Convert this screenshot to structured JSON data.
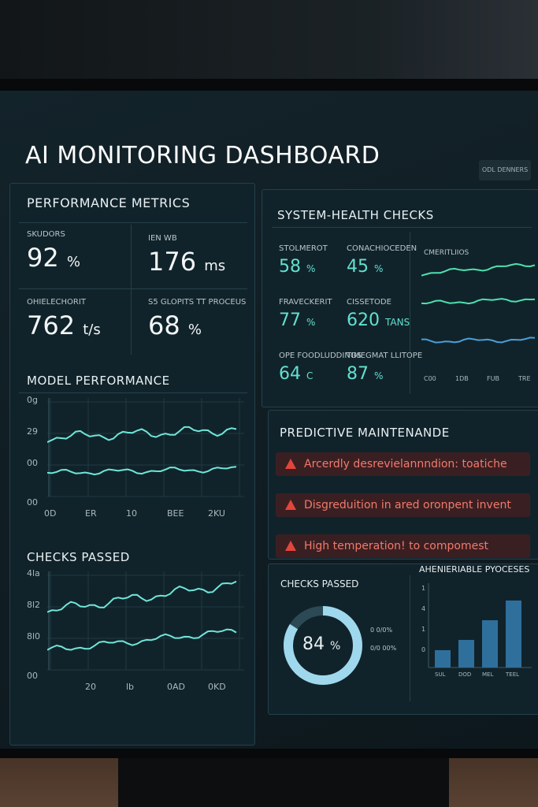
{
  "header": {
    "title": "AI MONITORING DASHBOARD",
    "button": "ODL DENNERS"
  },
  "performance_metrics": {
    "title": "PERFORMANCE METRICS",
    "metrics": [
      {
        "label": "SKUDORS",
        "value": "92",
        "unit": "%"
      },
      {
        "label": "IEN WB",
        "value": "176",
        "unit": "ms"
      },
      {
        "label": "OHIELECHORIT",
        "value": "762",
        "unit": "t/s"
      },
      {
        "label": "S5 GLOPITS TT PROCEUS",
        "value": "68",
        "unit": "%"
      }
    ]
  },
  "model_performance": {
    "title": "MODEL PERFORMANCE",
    "y_labels": [
      "0g",
      "29",
      "00",
      "00"
    ],
    "x_labels": [
      "0D",
      "ER",
      "10",
      "BEE",
      "2KU"
    ]
  },
  "checks_passed_chart": {
    "title": "CHECKS PASSED",
    "y_labels": [
      "4la",
      "8l2",
      "8l0",
      "00"
    ],
    "x_labels": [
      "20",
      "lb",
      "0AD",
      "0KD"
    ]
  },
  "system_health": {
    "title": "SYSTEM-HEALTH CHECKS",
    "metrics": [
      {
        "label": "STOLMEROT",
        "value": "58",
        "unit": "%"
      },
      {
        "label": "CONACHIOCEDEN",
        "value": "45",
        "unit": "%"
      },
      {
        "label": "FRAVECKERIT",
        "value": "77",
        "unit": "%"
      },
      {
        "label": "CISSETODE",
        "value": "620",
        "unit": "TANS"
      },
      {
        "label": "OPE FOODLUDDINGS",
        "value": "64",
        "unit": "C"
      },
      {
        "label": "TIMEGMAT LLITOPE",
        "value": "87",
        "unit": "%"
      }
    ],
    "mini_chart": {
      "title": "CMERITLIIOS",
      "x_labels": [
        "C00",
        "1DB",
        "FUB",
        "TRE"
      ]
    }
  },
  "predictive_maintenance": {
    "title": "PREDICTIVE MAINTENANDE",
    "alerts": [
      "Arcerdly desrevielannndion: toatiche",
      "Disgreduition in ared oronpent invent",
      "High temperation! to compomest"
    ]
  },
  "checks_passed_gauge": {
    "title": "CHECKS PASSED",
    "value": 84,
    "unit": "%",
    "legend": [
      "0 0/0%",
      "0/0 00%"
    ]
  },
  "processes_chart": {
    "title": "AHENIERIABLE PYOCESES",
    "y_labels": [
      "1",
      "4",
      "1",
      "0"
    ],
    "x_labels": [
      "SUL",
      "DOD",
      "MEL",
      "TEEL"
    ]
  }
}
